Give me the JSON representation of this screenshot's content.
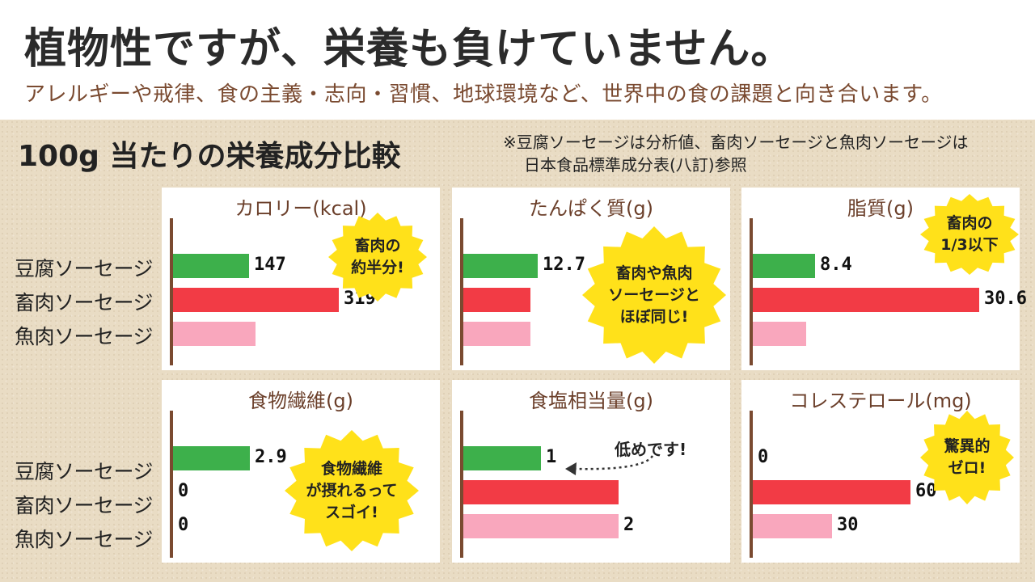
{
  "header": {
    "title": "植物性ですが、栄養も負けていません。",
    "subtitle": "アレルギーや戒律、食の主義・志向・習慣、地球環境など、世界中の食の課題と向き合います。"
  },
  "section": {
    "title": "100g 当たりの栄養成分比較",
    "note_line1": "※豆腐ソーセージは分析値、畜肉ソーセージと魚肉ソーセージは",
    "note_line2": "日本食品標準成分表(八訂)参照"
  },
  "rows": [
    "豆腐ソーセージ",
    "畜肉ソーセージ",
    "魚肉ソーセージ"
  ],
  "colors": {
    "tofu": "#3db04b",
    "meat": "#f23b45",
    "fish": "#f9a7bd",
    "axis": "#7a4a30",
    "callout": "#ffe11a"
  },
  "chart_data": [
    {
      "type": "bar",
      "title": "カロリー(kcal)",
      "categories": [
        "豆腐ソーセージ",
        "畜肉ソーセージ",
        "魚肉ソーセージ"
      ],
      "values": [
        147,
        319,
        158
      ],
      "labels": [
        "147",
        "319",
        ""
      ],
      "callout": "畜肉の\n約半分!"
    },
    {
      "type": "bar",
      "title": "たんぱく質(g)",
      "categories": [
        "豆腐ソーセージ",
        "畜肉ソーセージ",
        "魚肉ソーセージ"
      ],
      "values": [
        12.7,
        11.5,
        11.5
      ],
      "labels": [
        "12.7",
        "",
        ""
      ],
      "callout": "畜肉や魚肉\nソーセージと\nほぼ同じ!"
    },
    {
      "type": "bar",
      "title": "脂質(g)",
      "categories": [
        "豆腐ソーセージ",
        "畜肉ソーセージ",
        "魚肉ソーセージ"
      ],
      "values": [
        8.4,
        30.6,
        7.2
      ],
      "labels": [
        "8.4",
        "30.6",
        ""
      ],
      "callout": "畜肉の\n1/3以下"
    },
    {
      "type": "bar",
      "title": "食物繊維(g)",
      "categories": [
        "豆腐ソーセージ",
        "畜肉ソーセージ",
        "魚肉ソーセージ"
      ],
      "values": [
        2.9,
        0,
        0
      ],
      "labels": [
        "2.9",
        "0",
        "0"
      ],
      "callout": "食物繊維\nが摂れるって\nスゴイ!"
    },
    {
      "type": "bar",
      "title": "食塩相当量(g)",
      "categories": [
        "豆腐ソーセージ",
        "畜肉ソーセージ",
        "魚肉ソーセージ"
      ],
      "values": [
        1,
        2,
        2
      ],
      "labels": [
        "1",
        "",
        "2"
      ],
      "note": "低めです!"
    },
    {
      "type": "bar",
      "title": "コレステロール(mg)",
      "categories": [
        "豆腐ソーセージ",
        "畜肉ソーセージ",
        "魚肉ソーセージ"
      ],
      "values": [
        0,
        60,
        30
      ],
      "labels": [
        "0",
        "60",
        "30"
      ],
      "callout": "驚異的\nゼロ!"
    }
  ]
}
